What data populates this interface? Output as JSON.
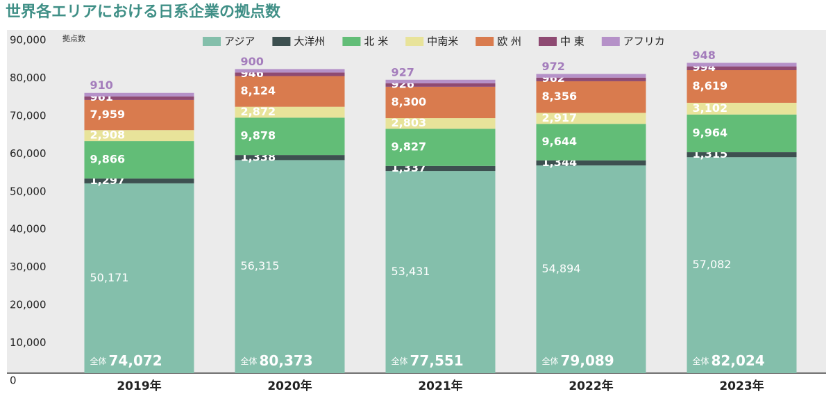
{
  "chart_data": {
    "type": "stacked-bar",
    "title": "世界各エリアにおける日系企業の拠点数",
    "y_label": "拠点数",
    "categories": [
      "2019年",
      "2020年",
      "2021年",
      "2022年",
      "2023年"
    ],
    "series": [
      {
        "name": "アジア",
        "color": "#84bfab",
        "values": [
          50171,
          56315,
          53431,
          54894,
          57082
        ],
        "value_labels": [
          "50,171",
          "56,315",
          "53,431",
          "54,894",
          "57,082"
        ]
      },
      {
        "name": "大洋州",
        "color": "#3d5050",
        "values": [
          1297,
          1338,
          1337,
          1344,
          1315
        ],
        "value_labels": [
          "1,297",
          "1,338",
          "1,337",
          "1,344",
          "1,315"
        ]
      },
      {
        "name": "北 米",
        "color": "#62bd77",
        "values": [
          9866,
          9878,
          9827,
          9644,
          9964
        ],
        "value_labels": [
          "9,866",
          "9,878",
          "9,827",
          "9,644",
          "9,964"
        ]
      },
      {
        "name": "中南米",
        "color": "#e8e39a",
        "values": [
          2908,
          2872,
          2803,
          2917,
          3102
        ],
        "value_labels": [
          "2,908",
          "2,872",
          "2,803",
          "2,917",
          "3,102"
        ]
      },
      {
        "name": "欧 州",
        "color": "#d97b4e",
        "values": [
          7959,
          8124,
          8300,
          8356,
          8619
        ],
        "value_labels": [
          "7,959",
          "8,124",
          "8,300",
          "8,356",
          "8,619"
        ]
      },
      {
        "name": "中 東",
        "color": "#8e4a72",
        "values": [
          961,
          946,
          926,
          962,
          994
        ]
      },
      {
        "name": "アフリカ",
        "color": "#b591c8",
        "values": [
          910,
          900,
          927,
          972,
          948
        ]
      }
    ],
    "total_prefix": "全体",
    "totals": [
      74072,
      80373,
      77551,
      79089,
      82024
    ],
    "total_labels": [
      "74,072",
      "80,373",
      "77,551",
      "79,089",
      "82,024"
    ],
    "ylim": [
      0,
      90000
    ],
    "yticks": [
      0,
      {
        "value": 10000,
        "label": "10,000"
      },
      {
        "value": 20000,
        "label": "20,000"
      },
      {
        "value": 30000,
        "label": "30,000"
      },
      {
        "value": 40000,
        "label": "40,000"
      },
      {
        "value": 50000,
        "label": "50,000"
      },
      {
        "value": 60000,
        "label": "60,000"
      },
      {
        "value": 70000,
        "label": "70,000"
      },
      {
        "value": 80000,
        "label": "80,000"
      },
      {
        "value": 90000,
        "label": "90,000"
      }
    ],
    "grid": false,
    "legend": "top"
  }
}
